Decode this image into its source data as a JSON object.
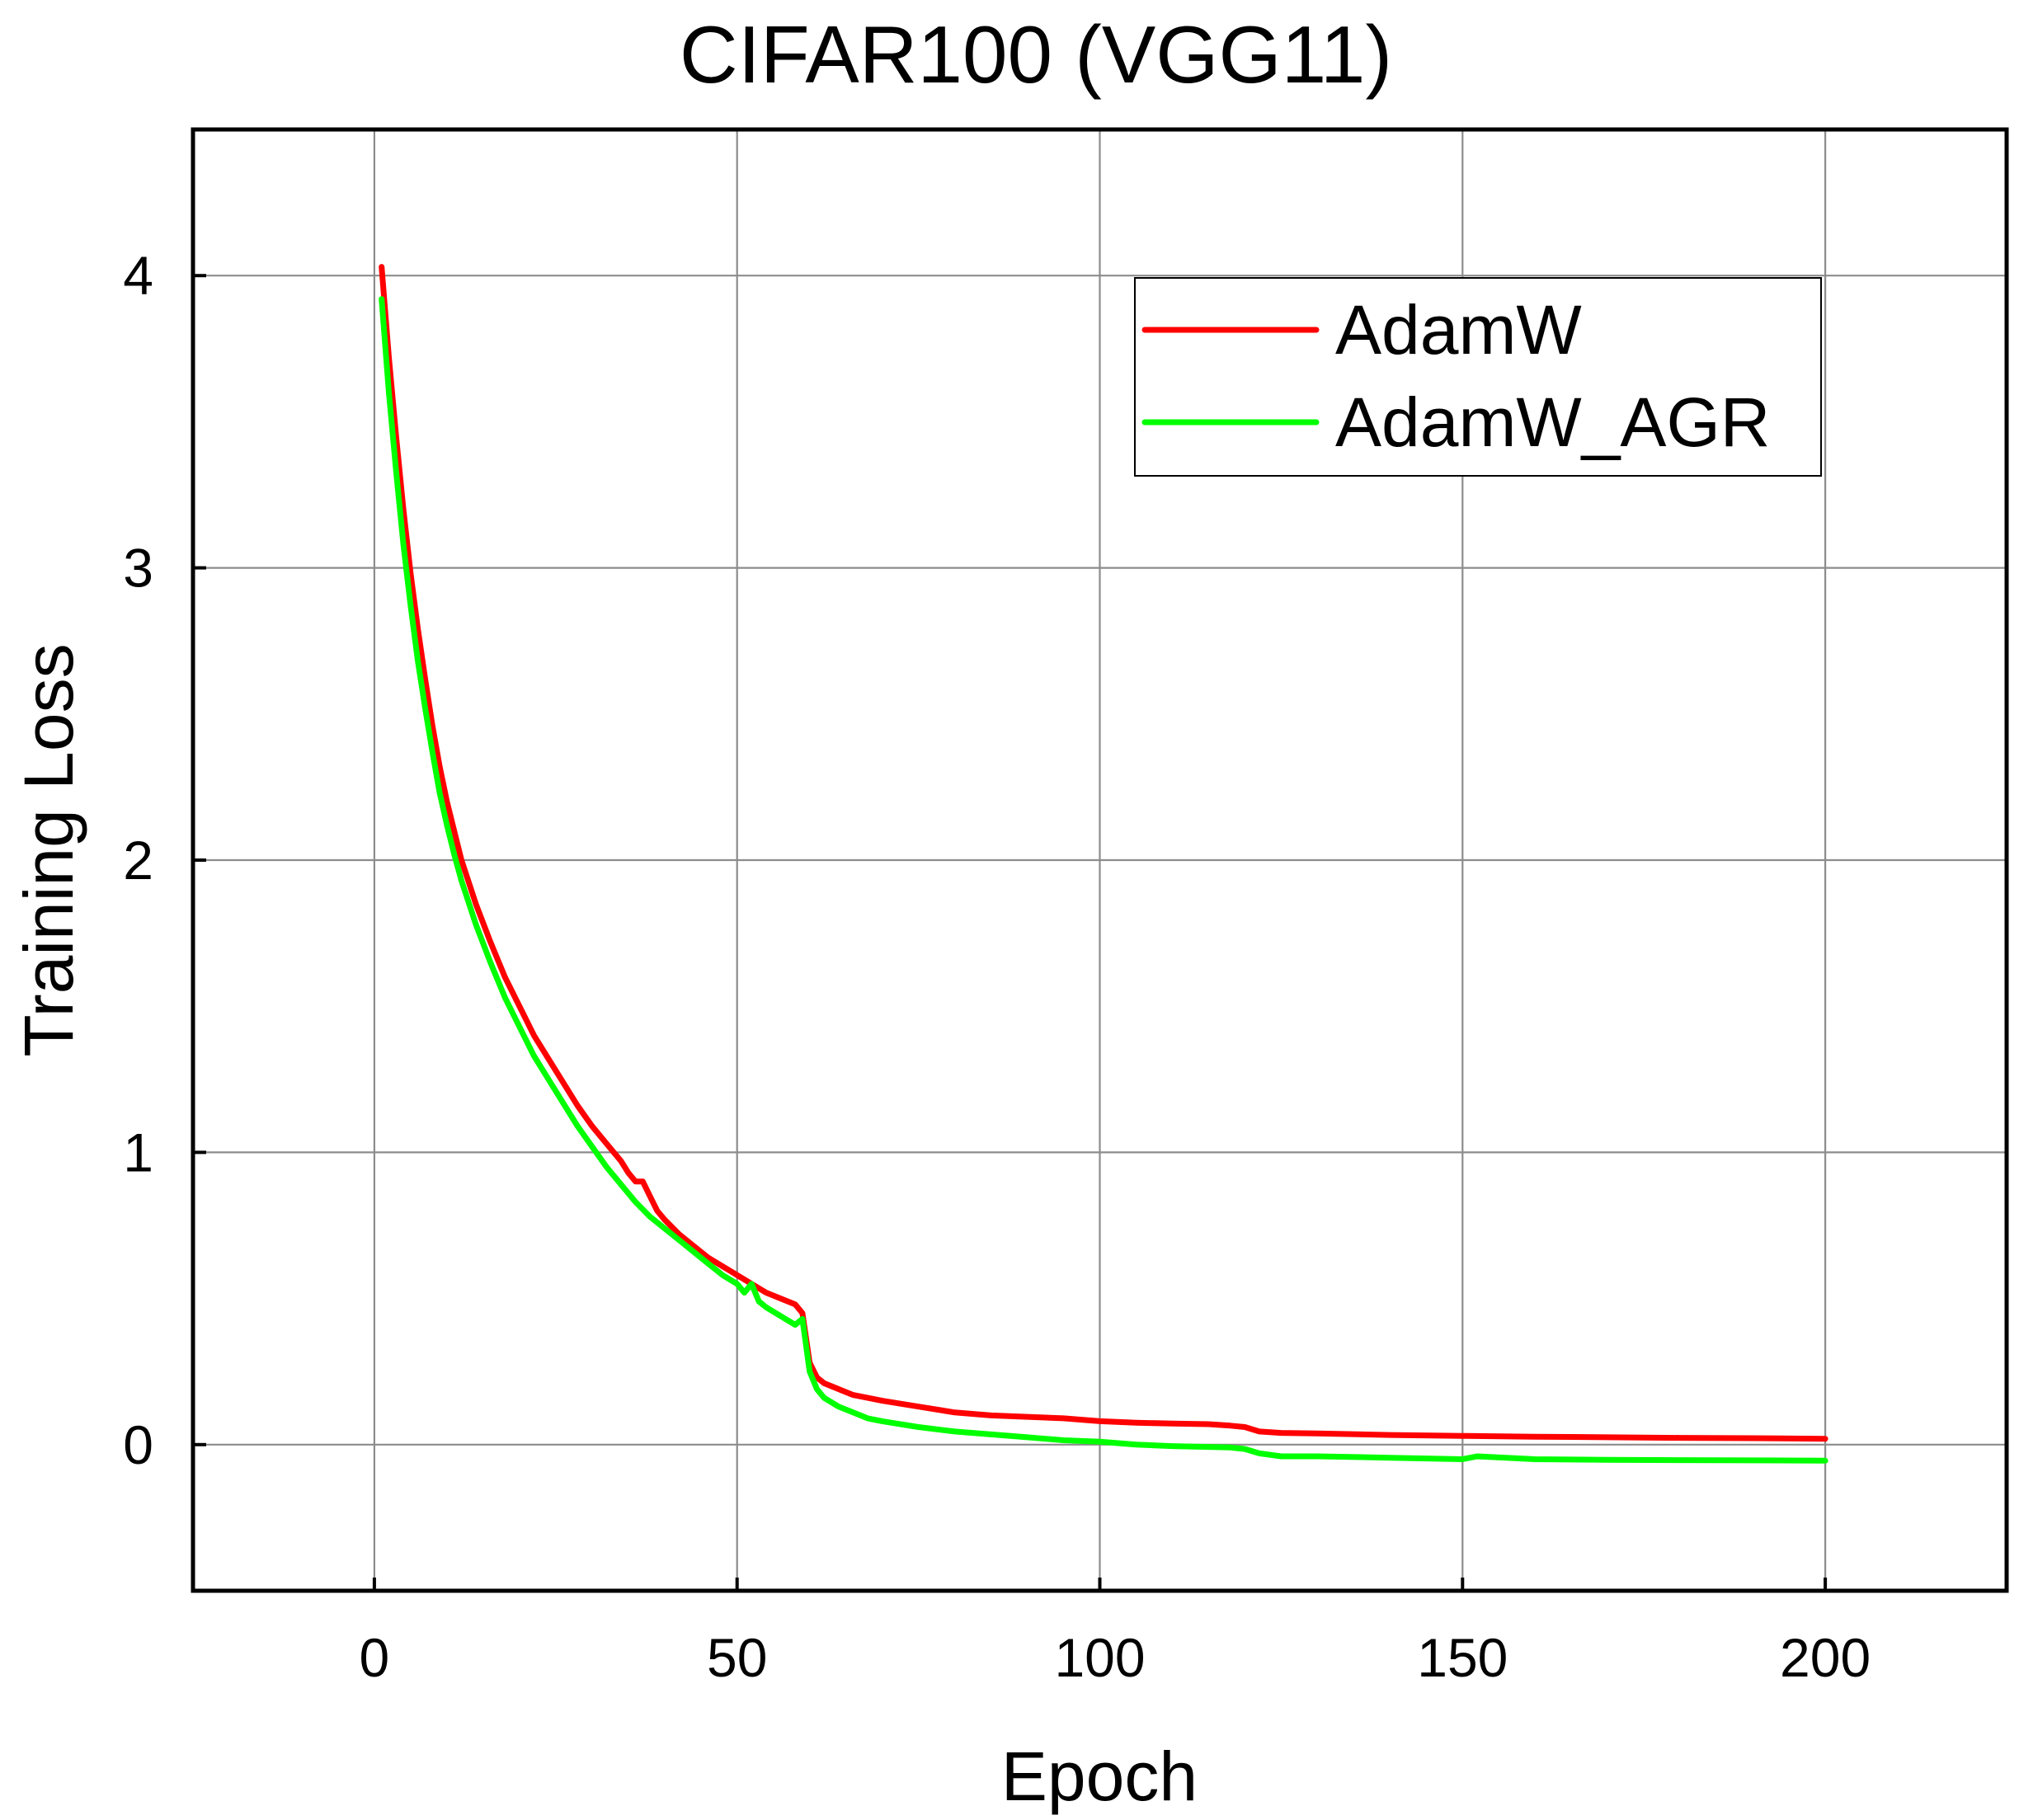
{
  "chart_data": {
    "type": "line",
    "title": "CIFAR100 (VGG11)",
    "xlabel": "Epoch",
    "ylabel": "Training Loss",
    "xlim": [
      -25,
      225
    ],
    "ylim": [
      -0.5,
      4.5
    ],
    "xticks": [
      0,
      50,
      100,
      150,
      200
    ],
    "yticks": [
      0,
      1,
      2,
      3,
      4
    ],
    "grid": true,
    "legend_position": "top-right",
    "series": [
      {
        "name": "AdamW",
        "color": "#ff0000",
        "x": [
          1,
          2,
          3,
          4,
          5,
          6,
          7,
          8,
          9,
          10,
          11,
          12,
          14,
          16,
          18,
          20,
          22,
          24,
          26,
          28,
          30,
          32,
          34,
          35,
          36,
          37,
          38,
          39,
          40,
          42,
          44,
          46,
          48,
          50,
          52,
          54,
          56,
          58,
          59,
          60,
          61,
          62,
          64,
          66,
          68,
          70,
          75,
          80,
          85,
          90,
          95,
          100,
          105,
          110,
          115,
          118,
          120,
          122,
          125,
          130,
          140,
          150,
          160,
          170,
          180,
          190,
          200
        ],
        "y": [
          4.03,
          3.72,
          3.45,
          3.2,
          2.98,
          2.79,
          2.62,
          2.46,
          2.32,
          2.2,
          2.1,
          2.0,
          1.85,
          1.72,
          1.6,
          1.5,
          1.4,
          1.32,
          1.24,
          1.16,
          1.09,
          1.03,
          0.97,
          0.93,
          0.9,
          0.9,
          0.85,
          0.8,
          0.77,
          0.72,
          0.68,
          0.64,
          0.61,
          0.58,
          0.55,
          0.52,
          0.5,
          0.48,
          0.45,
          0.28,
          0.23,
          0.21,
          0.19,
          0.17,
          0.16,
          0.15,
          0.13,
          0.11,
          0.1,
          0.095,
          0.09,
          0.08,
          0.075,
          0.072,
          0.07,
          0.065,
          0.06,
          0.045,
          0.04,
          0.038,
          0.033,
          0.03,
          0.027,
          0.025,
          0.023,
          0.022,
          0.02
        ]
      },
      {
        "name": "AdamW_AGR",
        "color": "#00ff00",
        "x": [
          1,
          2,
          3,
          4,
          5,
          6,
          7,
          8,
          9,
          10,
          11,
          12,
          14,
          16,
          18,
          20,
          22,
          24,
          26,
          28,
          30,
          32,
          34,
          36,
          38,
          40,
          42,
          44,
          46,
          48,
          50,
          51,
          52,
          53,
          54,
          56,
          58,
          59,
          60,
          61,
          62,
          64,
          66,
          68,
          70,
          75,
          80,
          85,
          90,
          95,
          100,
          105,
          110,
          115,
          118,
          120,
          122,
          125,
          130,
          140,
          150,
          152,
          160,
          170,
          180,
          190,
          200
        ],
        "y": [
          3.92,
          3.6,
          3.33,
          3.08,
          2.87,
          2.68,
          2.52,
          2.37,
          2.23,
          2.12,
          2.02,
          1.93,
          1.78,
          1.65,
          1.53,
          1.43,
          1.33,
          1.25,
          1.17,
          1.09,
          1.02,
          0.95,
          0.89,
          0.83,
          0.78,
          0.74,
          0.7,
          0.66,
          0.62,
          0.58,
          0.55,
          0.52,
          0.55,
          0.49,
          0.47,
          0.44,
          0.41,
          0.43,
          0.25,
          0.19,
          0.16,
          0.13,
          0.11,
          0.09,
          0.08,
          0.06,
          0.045,
          0.035,
          0.025,
          0.015,
          0.01,
          0.0,
          -0.005,
          -0.008,
          -0.01,
          -0.015,
          -0.03,
          -0.04,
          -0.04,
          -0.045,
          -0.05,
          -0.04,
          -0.05,
          -0.052,
          -0.053,
          -0.054,
          -0.055
        ]
      }
    ]
  }
}
